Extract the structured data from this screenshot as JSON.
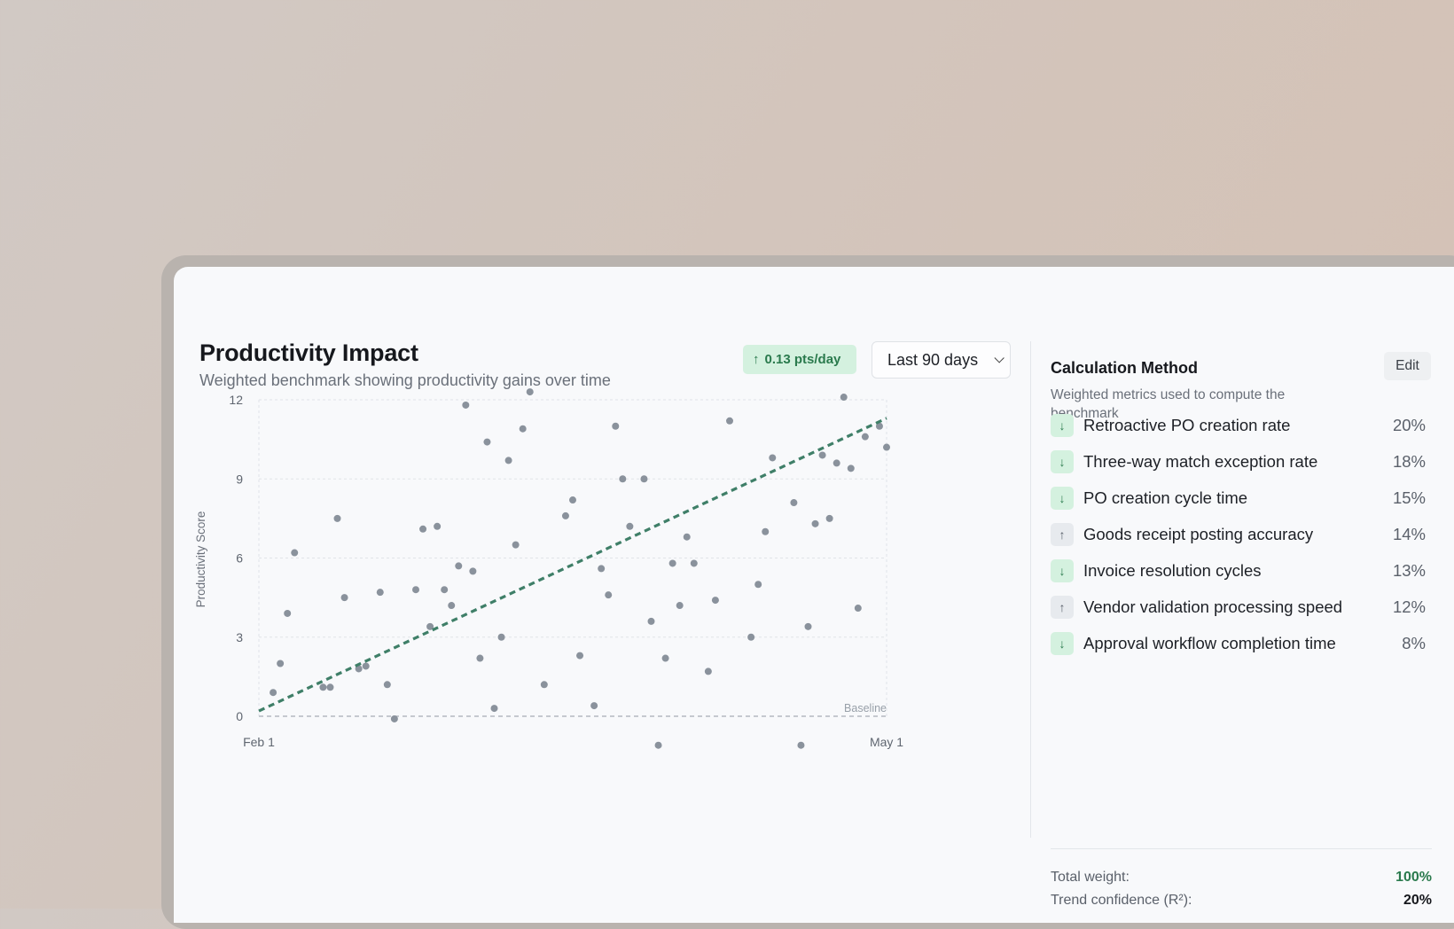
{
  "header": {
    "title": "Productivity Impact",
    "subtitle": "Weighted benchmark showing productivity gains over time",
    "trend_badge": "0.13 pts/day",
    "range_selected": "Last 90 days"
  },
  "chart_data": {
    "type": "scatter",
    "ylabel": "Productivity Score",
    "xlabel": "",
    "ylim": [
      0,
      12
    ],
    "yticks": [
      "0",
      "3",
      "6",
      "9",
      "12"
    ],
    "xticks": [
      "Feb 1",
      "May 1"
    ],
    "baseline_label": "Baseline",
    "grid": true,
    "trendline": {
      "start": 0.2,
      "end": 11.3
    },
    "points": [
      [
        2,
        0.9
      ],
      [
        3,
        2.0
      ],
      [
        4,
        3.9
      ],
      [
        5,
        6.2
      ],
      [
        9,
        1.1
      ],
      [
        10,
        1.1
      ],
      [
        11,
        7.5
      ],
      [
        12,
        4.5
      ],
      [
        14,
        1.8
      ],
      [
        15,
        1.9
      ],
      [
        17,
        4.7
      ],
      [
        18,
        1.2
      ],
      [
        19,
        -0.1
      ],
      [
        22,
        4.8
      ],
      [
        23,
        7.1
      ],
      [
        24,
        3.4
      ],
      [
        25,
        7.2
      ],
      [
        26,
        4.8
      ],
      [
        27,
        4.2
      ],
      [
        28,
        5.7
      ],
      [
        29,
        11.8
      ],
      [
        30,
        5.5
      ],
      [
        31,
        2.2
      ],
      [
        32,
        10.4
      ],
      [
        33,
        0.3
      ],
      [
        34,
        3.0
      ],
      [
        35,
        9.7
      ],
      [
        36,
        6.5
      ],
      [
        37,
        10.9
      ],
      [
        38,
        12.3
      ],
      [
        40,
        1.2
      ],
      [
        43,
        7.6
      ],
      [
        44,
        8.2
      ],
      [
        45,
        2.3
      ],
      [
        47,
        0.4
      ],
      [
        48,
        5.6
      ],
      [
        49,
        4.6
      ],
      [
        50,
        11.0
      ],
      [
        51,
        9.0
      ],
      [
        52,
        7.2
      ],
      [
        54,
        9.0
      ],
      [
        55,
        3.6
      ],
      [
        56,
        -1.1
      ],
      [
        57,
        2.2
      ],
      [
        58,
        5.8
      ],
      [
        59,
        4.2
      ],
      [
        60,
        6.8
      ],
      [
        61,
        5.8
      ],
      [
        63,
        1.7
      ],
      [
        64,
        4.4
      ],
      [
        66,
        11.2
      ],
      [
        69,
        3.0
      ],
      [
        70,
        5.0
      ],
      [
        71,
        7.0
      ],
      [
        72,
        9.8
      ],
      [
        75,
        8.1
      ],
      [
        76,
        -1.1
      ],
      [
        77,
        3.4
      ],
      [
        78,
        7.3
      ],
      [
        79,
        9.9
      ],
      [
        80,
        7.5
      ],
      [
        81,
        9.6
      ],
      [
        82,
        12.1
      ],
      [
        83,
        9.4
      ],
      [
        84,
        4.1
      ],
      [
        85,
        10.6
      ],
      [
        87,
        11.0
      ],
      [
        88,
        10.2
      ]
    ]
  },
  "panel": {
    "title": "Calculation Method",
    "subtitle": "Weighted metrics used to compute the benchmark",
    "edit_label": "Edit",
    "metrics": [
      {
        "label": "Retroactive PO creation rate",
        "weight": "20%",
        "direction": "down",
        "icon": "arrow-down-icon"
      },
      {
        "label": "Three-way match exception rate",
        "weight": "18%",
        "direction": "down",
        "icon": "arrow-down-icon"
      },
      {
        "label": "PO creation cycle time",
        "weight": "15%",
        "direction": "down",
        "icon": "arrow-down-icon"
      },
      {
        "label": "Goods receipt posting accuracy",
        "weight": "14%",
        "direction": "up",
        "icon": "arrow-up-icon"
      },
      {
        "label": "Invoice resolution cycles",
        "weight": "13%",
        "direction": "down",
        "icon": "arrow-down-icon"
      },
      {
        "label": "Vendor validation processing speed",
        "weight": "12%",
        "direction": "up",
        "icon": "arrow-up-icon"
      },
      {
        "label": "Approval workflow completion time",
        "weight": "8%",
        "direction": "down",
        "icon": "arrow-down-icon"
      }
    ],
    "total_weight_label": "Total weight:",
    "total_weight_value": "100%",
    "confidence_label": "Trend confidence (R²):",
    "confidence_value": "20%"
  },
  "colors": {
    "accent_green": "#2a7a4d",
    "badge_green_bg": "#d4f1df",
    "trendline": "#3f7f68",
    "point": "#8a929c"
  }
}
